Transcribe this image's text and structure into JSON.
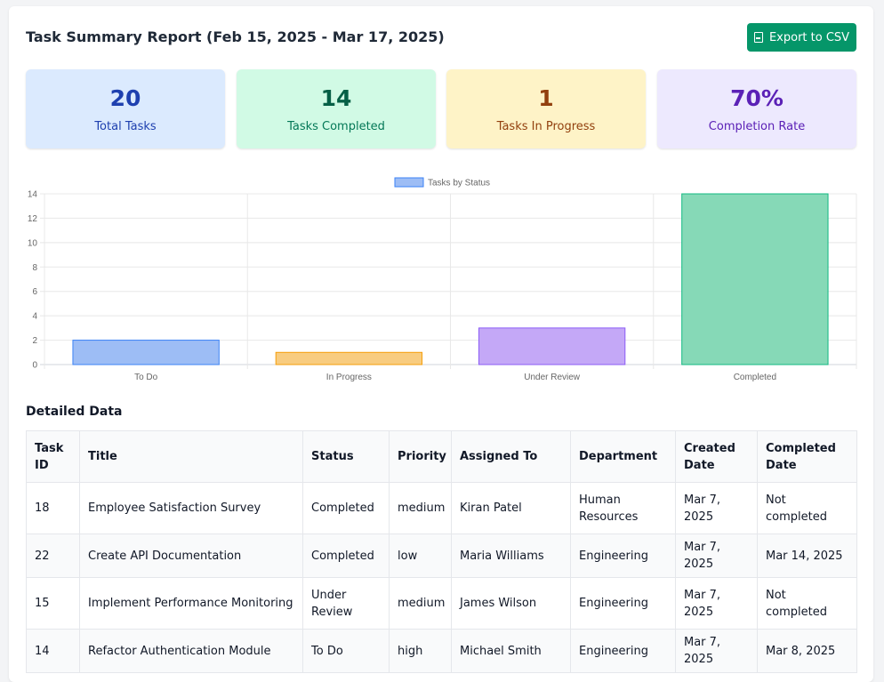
{
  "header": {
    "title": "Task Summary Report (Feb 15, 2025 - Mar 17, 2025)",
    "export_label": "Export to CSV"
  },
  "stats": [
    {
      "value": "20",
      "label": "Total Tasks"
    },
    {
      "value": "14",
      "label": "Tasks Completed"
    },
    {
      "value": "1",
      "label": "Tasks In Progress"
    },
    {
      "value": "70%",
      "label": "Completion Rate"
    }
  ],
  "chart_data": {
    "type": "bar",
    "categories": [
      "To Do",
      "In Progress",
      "Under Review",
      "Completed"
    ],
    "series": [
      {
        "name": "Tasks by Status",
        "values": [
          2,
          1,
          3,
          14
        ]
      }
    ],
    "ylim": [
      0,
      14
    ],
    "yticks": [
      0,
      2,
      4,
      6,
      8,
      10,
      12,
      14
    ],
    "legend_position": "top",
    "grid": true,
    "colors": [
      "#9dbdf5",
      "#f8cc80",
      "#c4a8f7",
      "#86d9b7"
    ],
    "border_colors": [
      "#3b82f6",
      "#f59e0b",
      "#8b5cf6",
      "#10b981"
    ],
    "legend_color": "#9dbdf5"
  },
  "table": {
    "section_title": "Detailed Data",
    "columns": [
      "Task ID",
      "Title",
      "Status",
      "Priority",
      "Assigned To",
      "Department",
      "Created Date",
      "Completed Date"
    ],
    "rows": [
      [
        "18",
        "Employee Satisfaction Survey",
        "Completed",
        "medium",
        "Kiran Patel",
        "Human Resources",
        "Mar 7, 2025",
        "Not completed"
      ],
      [
        "22",
        "Create API Documentation",
        "Completed",
        "low",
        "Maria Williams",
        "Engineering",
        "Mar 7, 2025",
        "Mar 14, 2025"
      ],
      [
        "15",
        "Implement Performance Monitoring",
        "Under Review",
        "medium",
        "James Wilson",
        "Engineering",
        "Mar 7, 2025",
        "Not completed"
      ],
      [
        "14",
        "Refactor Authentication Module",
        "To Do",
        "high",
        "Michael Smith",
        "Engineering",
        "Mar 7, 2025",
        "Mar 8, 2025"
      ]
    ]
  }
}
